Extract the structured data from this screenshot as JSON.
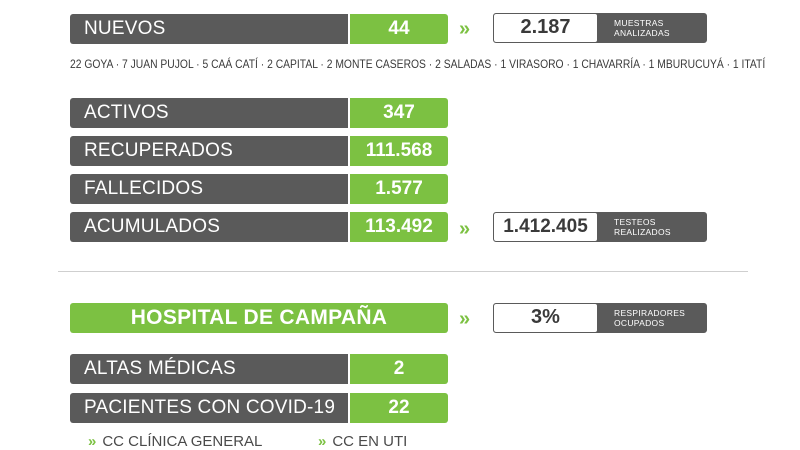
{
  "summary": {
    "nuevos": {
      "label": "NUEVOS",
      "value": "44"
    },
    "muestras": {
      "value": "2.187",
      "caption_line1": "MUESTRAS",
      "caption_line2": "ANALIZADAS"
    },
    "towns_text": "22 GOYA · 7 JUAN PUJOL · 5 CAÁ CATÍ · 2 CAPITAL · 2 MONTE CASEROS · 2 SALADAS · 1 VIRASORO · 1 CHAVARRÍA · 1 MBURUCUYÁ · 1 ITATÍ",
    "activos": {
      "label": "ACTIVOS",
      "value": "347"
    },
    "recuperados": {
      "label": "RECUPERADOS",
      "value": "111.568"
    },
    "fallecidos": {
      "label": "FALLECIDOS",
      "value": "1.577"
    },
    "acumulados": {
      "label": "ACUMULADOS",
      "value": "113.492"
    },
    "testeos": {
      "value": "1.412.405",
      "caption_line1": "TESTEOS",
      "caption_line2": "REALIZADOS"
    }
  },
  "hospital": {
    "title": "HOSPITAL DE CAMPAÑA",
    "respiradores": {
      "value": "3%",
      "caption_line1": "RESPIRADORES",
      "caption_line2": "OCUPADOS"
    },
    "altas": {
      "label": "ALTAS MÉDICAS",
      "value": "2"
    },
    "pacientes": {
      "label": "PACIENTES CON COVID-19",
      "value": "22"
    },
    "bottom_left": "CC CLÍNICA GENERAL",
    "bottom_right": "CC EN UTI"
  },
  "icons": {
    "chevron": "»",
    "chevron_name": "double-chevron-right-icon"
  },
  "colors": {
    "label_bg": "#5a5a5a",
    "value_bg": "#7cc142",
    "text_dark": "#3a3a3a"
  }
}
